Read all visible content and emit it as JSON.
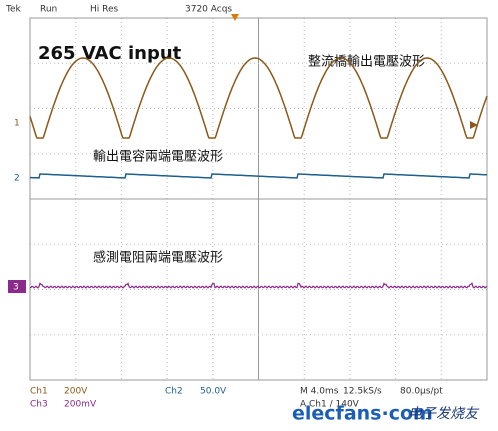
{
  "status_bar": {
    "brand": "Tek",
    "state": "Run",
    "mode": "Hi Res",
    "acquisitions": "3720 Acqs"
  },
  "annotations": {
    "input": "265 VAC input",
    "rectifier": "整流橋輸出電壓波形",
    "capacitor": "輸出電容兩端電壓波形",
    "resistor": "感測電阻兩端電壓波形"
  },
  "channel_markers": [
    "1",
    "2",
    "3"
  ],
  "readout": {
    "ch1_label": "Ch1",
    "ch1_scale": "200V",
    "ch2_label": "Ch2",
    "ch2_scale": "50.0V",
    "ch3_label": "Ch3",
    "ch3_scale": "200mV",
    "timebase": "M 4.0ms",
    "sample_rate": "12.5kS/s",
    "resolution": "80.0µs/pt",
    "trigger": "A Ch1 / 140V"
  },
  "watermark": {
    "site": "elecfans·com",
    "name": "电子发烧友"
  }
}
